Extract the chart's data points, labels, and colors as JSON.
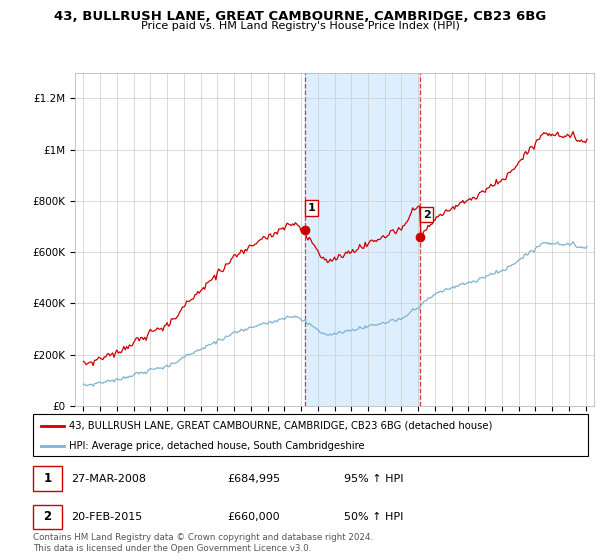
{
  "title": "43, BULLRUSH LANE, GREAT CAMBOURNE, CAMBRIDGE, CB23 6BG",
  "subtitle": "Price paid vs. HM Land Registry's House Price Index (HPI)",
  "ylim": [
    0,
    1300000
  ],
  "yticks": [
    0,
    200000,
    400000,
    600000,
    800000,
    1000000,
    1200000
  ],
  "ytick_labels": [
    "£0",
    "£200K",
    "£400K",
    "£600K",
    "£800K",
    "£1M",
    "£1.2M"
  ],
  "sale1_date_x": 2008.23,
  "sale1_price": 684995,
  "sale2_date_x": 2015.13,
  "sale2_price": 660000,
  "legend_house": "43, BULLRUSH LANE, GREAT CAMBOURNE, CAMBRIDGE, CB23 6BG (detached house)",
  "legend_hpi": "HPI: Average price, detached house, South Cambridgeshire",
  "footer": "Contains HM Land Registry data © Crown copyright and database right 2024.\nThis data is licensed under the Open Government Licence v3.0.",
  "house_color": "#cc0000",
  "hpi_color": "#7fb3d3",
  "shade_color": "#ddeeff",
  "background_color": "#ffffff",
  "grid_color": "#cccccc",
  "xmin": 1994.5,
  "xmax": 2025.5
}
